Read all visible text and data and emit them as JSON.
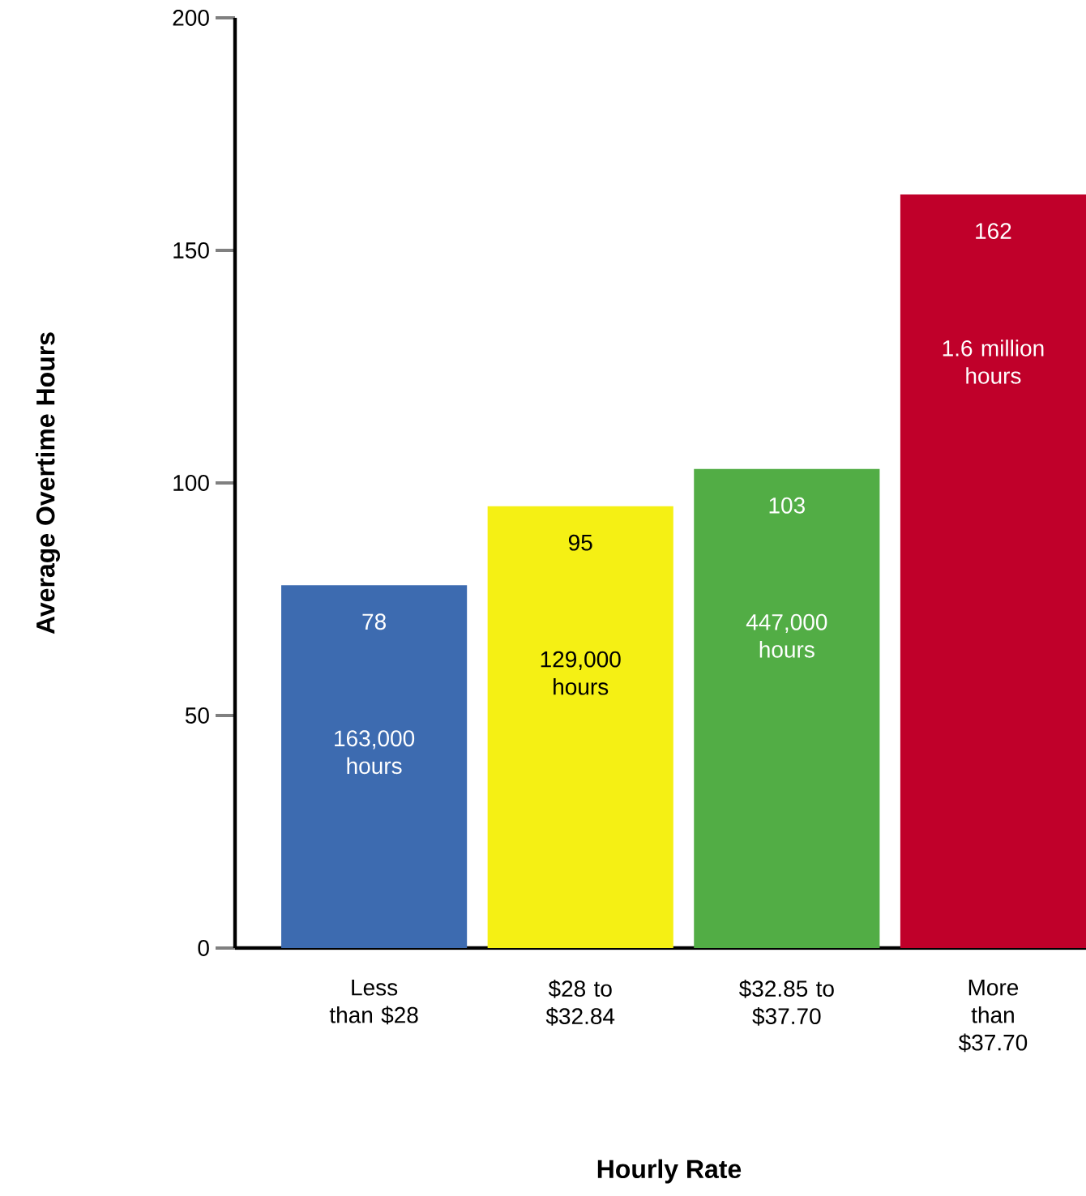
{
  "chart_data": {
    "type": "bar",
    "xlabel": "Hourly Rate",
    "ylabel": "Average Overtime Hours",
    "categories": [
      "Less than $28",
      "$28 to $32.84",
      "$32.85 to $37.70",
      "More than $37.70"
    ],
    "values": [
      78,
      95,
      103,
      162
    ],
    "colors": [
      "#3d6bb0",
      "#f5f014",
      "#52ad45",
      "#c0002a"
    ],
    "ylim": [
      0,
      200
    ],
    "yticks": [
      0,
      50,
      100,
      150,
      200
    ],
    "data_labels": true,
    "annotations": [
      "163,000 hours",
      "129,000 hours",
      "447,000 hours",
      "1.6 million hours"
    ]
  }
}
